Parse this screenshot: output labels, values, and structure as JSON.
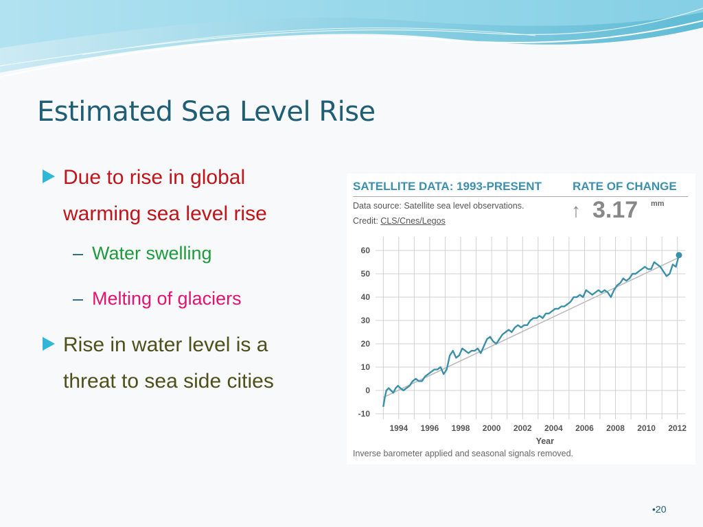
{
  "slide": {
    "title": "Estimated Sea Level Rise",
    "page_number": "•20"
  },
  "bullets": [
    {
      "text_line1": "Due to rise in global",
      "text_line2": "warming sea level rise",
      "color": "#c0141b",
      "sub": [
        {
          "text": "Water swelling",
          "color": "#1f9a3c"
        },
        {
          "text": "Melting of glaciers",
          "color": "#e2136e"
        }
      ]
    },
    {
      "text_line1": "Rise in water level is a",
      "text_line2": "threat to sea side cities",
      "color": "#4f4f1b"
    }
  ],
  "colors": {
    "title": "#1f5e75",
    "bullet_arrow": "#31b7d6",
    "chart_heading": "#3b8fb0",
    "series_line": "#3a90a8",
    "trend_line": "#b8b8b8"
  },
  "chart_header": {
    "title": "SATELLITE DATA: 1993-PRESENT",
    "rate_label": "RATE OF CHANGE",
    "source": "Data source: Satellite sea level observations.",
    "credit_prefix": "Credit: ",
    "credit_link": "CLS/Cnes/Legos",
    "rate_arrow": "↑",
    "rate_value": "3.17",
    "rate_unit": "mm",
    "footnote": "Inverse barometer applied and seasonal signals removed."
  },
  "chart_data": {
    "type": "line",
    "title": "SATELLITE DATA: 1993-PRESENT",
    "xlabel": "Year",
    "ylabel": "",
    "xlim": [
      1992.5,
      2012.5
    ],
    "ylim": [
      -10,
      60
    ],
    "xticks": [
      1994,
      1996,
      1998,
      2000,
      2002,
      2004,
      2006,
      2008,
      2010,
      2012
    ],
    "yticks": [
      -10,
      0,
      10,
      20,
      30,
      40,
      50,
      60
    ],
    "grid": true,
    "series": [
      {
        "x": [
          1993.0,
          1993.1,
          1993.2,
          1993.35,
          1993.5,
          1993.65,
          1993.8,
          1993.95,
          1994.1,
          1994.3,
          1994.5,
          1994.7,
          1994.9,
          1995.1,
          1995.3,
          1995.5,
          1995.7,
          1995.9,
          1996.1,
          1996.3,
          1996.5,
          1996.7,
          1996.9,
          1997.1,
          1997.3,
          1997.5,
          1997.7,
          1997.9,
          1998.1,
          1998.3,
          1998.5,
          1998.7,
          1998.9,
          1999.1,
          1999.3,
          1999.5,
          1999.7,
          1999.9,
          2000.1,
          2000.3,
          2000.5,
          2000.7,
          2000.9,
          2001.1,
          2001.3,
          2001.5,
          2001.7,
          2001.9,
          2002.1,
          2002.3,
          2002.5,
          2002.7,
          2002.9,
          2003.1,
          2003.3,
          2003.5,
          2003.7,
          2003.9,
          2004.1,
          2004.3,
          2004.5,
          2004.7,
          2004.9,
          2005.1,
          2005.3,
          2005.5,
          2005.7,
          2005.9,
          2006.1,
          2006.3,
          2006.5,
          2006.7,
          2006.9,
          2007.1,
          2007.3,
          2007.5,
          2007.7,
          2007.9,
          2008.1,
          2008.3,
          2008.5,
          2008.7,
          2008.9,
          2009.1,
          2009.3,
          2009.5,
          2009.7,
          2009.9,
          2010.1,
          2010.3,
          2010.5,
          2010.7,
          2010.9,
          2011.1,
          2011.3,
          2011.5,
          2011.7,
          2011.9,
          2012.1
        ],
        "values": [
          -7,
          -3,
          0,
          1,
          0,
          -1,
          1,
          2,
          1,
          0,
          1,
          2,
          4,
          5,
          4,
          4,
          6,
          7,
          8,
          9,
          9,
          10,
          7,
          9,
          15,
          17,
          14,
          15,
          18,
          17,
          16,
          17,
          17,
          18,
          16,
          19,
          22,
          23,
          21,
          20,
          22,
          24,
          25,
          26,
          25,
          27,
          28,
          27,
          28,
          28,
          30,
          31,
          31,
          32,
          31,
          33,
          33,
          34,
          35,
          35,
          36,
          36,
          37,
          38,
          40,
          40,
          41,
          40,
          43,
          42,
          41,
          42,
          43,
          42,
          43,
          42,
          40,
          43,
          45,
          46,
          48,
          47,
          48,
          50,
          50,
          51,
          52,
          53,
          52,
          52,
          55,
          54,
          53,
          51,
          49,
          50,
          54,
          53,
          58
        ]
      }
    ],
    "trend": {
      "x": [
        1993.0,
        2012.1
      ],
      "values": [
        -3,
        57
      ]
    },
    "annotations": [
      "RATE OF CHANGE",
      "↑ 3.17 mm",
      "Inverse barometer applied and seasonal signals removed."
    ]
  }
}
